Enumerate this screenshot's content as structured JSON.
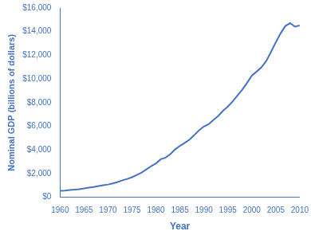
{
  "chart_data": {
    "type": "line",
    "x": [
      1960,
      1961,
      1962,
      1963,
      1964,
      1965,
      1966,
      1967,
      1968,
      1969,
      1970,
      1971,
      1972,
      1973,
      1974,
      1975,
      1976,
      1977,
      1978,
      1979,
      1980,
      1981,
      1982,
      1983,
      1984,
      1985,
      1986,
      1987,
      1988,
      1989,
      1990,
      1991,
      1992,
      1993,
      1994,
      1995,
      1996,
      1997,
      1998,
      1999,
      2000,
      2001,
      2002,
      2003,
      2004,
      2005,
      2006,
      2007,
      2008,
      2009,
      2010
    ],
    "values": [
      543.3,
      563.3,
      605.1,
      638.6,
      685.8,
      743.7,
      815.0,
      861.7,
      942.5,
      1019.9,
      1075.9,
      1167.8,
      1282.4,
      1428.5,
      1548.8,
      1688.9,
      1877.6,
      2086.0,
      2356.6,
      2632.1,
      2862.5,
      3211.0,
      3345.0,
      3638.1,
      4040.7,
      4346.7,
      4590.2,
      4870.2,
      5252.6,
      5657.7,
      5979.6,
      6174.0,
      6539.3,
      6878.7,
      7308.8,
      7664.1,
      8100.2,
      8608.5,
      9089.2,
      9660.6,
      10284.8,
      10621.8,
      10977.5,
      11510.7,
      12274.9,
      13093.7,
      13855.9,
      14477.6,
      14718.6,
      14418.7,
      14526.5
    ],
    "color": "#4472C4",
    "xlabel": "Year",
    "ylabel": "Nominal GDP (billions of dollars)",
    "xlim": [
      1960,
      2010
    ],
    "ylim": [
      0,
      16000
    ],
    "xticks": [
      1960,
      1965,
      1970,
      1975,
      1980,
      1985,
      1990,
      1995,
      2000,
      2005,
      2010
    ],
    "yticks": [
      {
        "value": 0,
        "label": "$0"
      },
      {
        "value": 2000,
        "label": "$2,000"
      },
      {
        "value": 4000,
        "label": "$4,000"
      },
      {
        "value": 6000,
        "label": "$6,000"
      },
      {
        "value": 8000,
        "label": "$8,000"
      },
      {
        "value": 10000,
        "label": "$10,000"
      },
      {
        "value": 12000,
        "label": "$12,000"
      },
      {
        "value": 14000,
        "label": "$14,000"
      },
      {
        "value": 16000,
        "label": "$16,000"
      }
    ],
    "grid": false
  }
}
